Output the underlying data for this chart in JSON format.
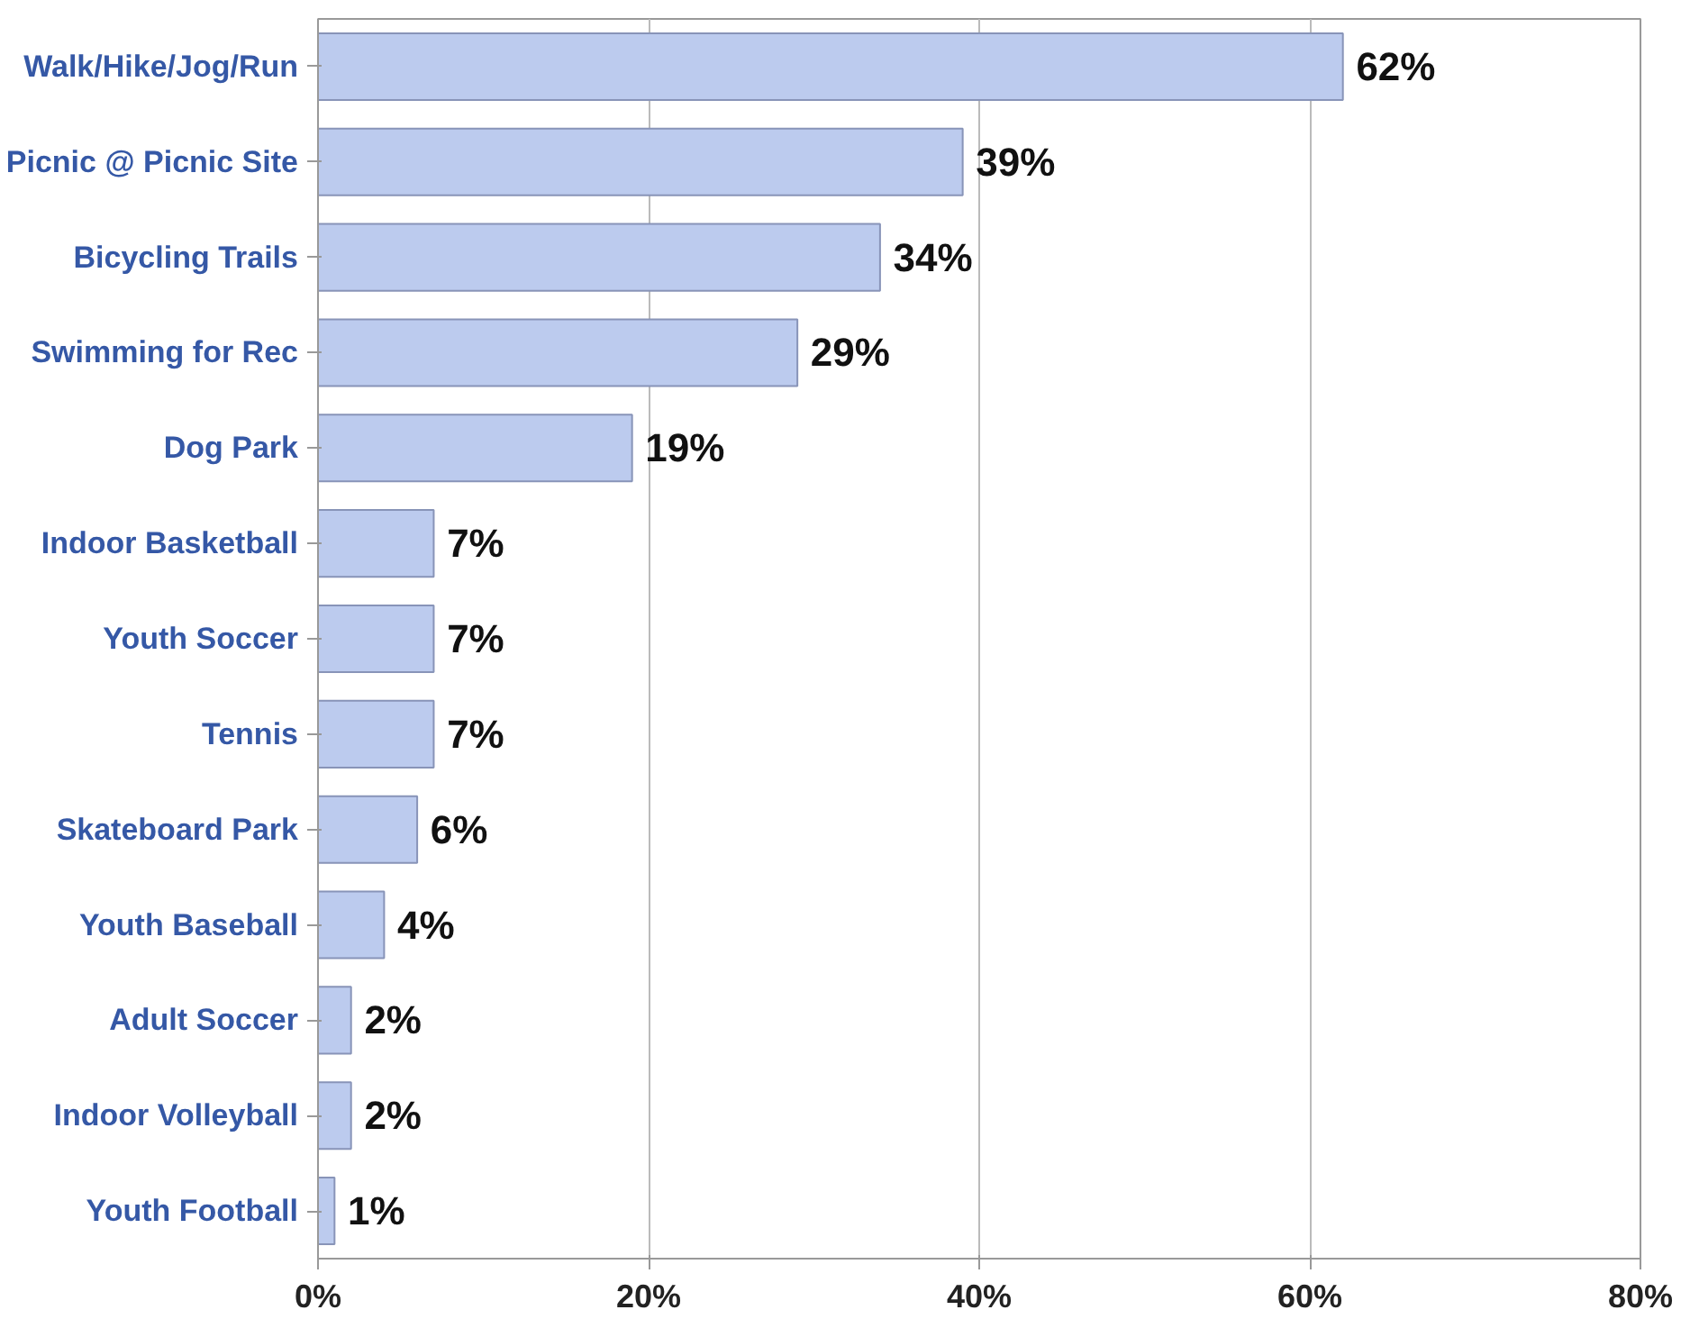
{
  "chart_data": {
    "type": "bar",
    "orientation": "horizontal",
    "categories": [
      "Walk/Hike/Jog/Run",
      "Picnic @ Picnic Site",
      "Bicycling Trails",
      "Swimming for Rec",
      "Dog Park",
      "Indoor Basketball",
      "Youth Soccer",
      "Tennis",
      "Skateboard Park",
      "Youth Baseball",
      "Adult Soccer",
      "Indoor Volleyball",
      "Youth Football"
    ],
    "values": [
      62,
      39,
      34,
      29,
      19,
      7,
      7,
      7,
      6,
      4,
      2,
      2,
      1
    ],
    "value_labels": [
      "62%",
      "39%",
      "34%",
      "29%",
      "19%",
      "7%",
      "7%",
      "7%",
      "6%",
      "4%",
      "2%",
      "2%",
      "1%"
    ],
    "color": "#bccbee",
    "xlim": [
      0,
      80
    ],
    "xticks": [
      {
        "value": 0,
        "label": "0%"
      },
      {
        "value": 20,
        "label": "20%"
      },
      {
        "value": 40,
        "label": "40%"
      },
      {
        "value": 60,
        "label": "60%"
      },
      {
        "value": 80,
        "label": "80%"
      }
    ],
    "grid": "x"
  }
}
